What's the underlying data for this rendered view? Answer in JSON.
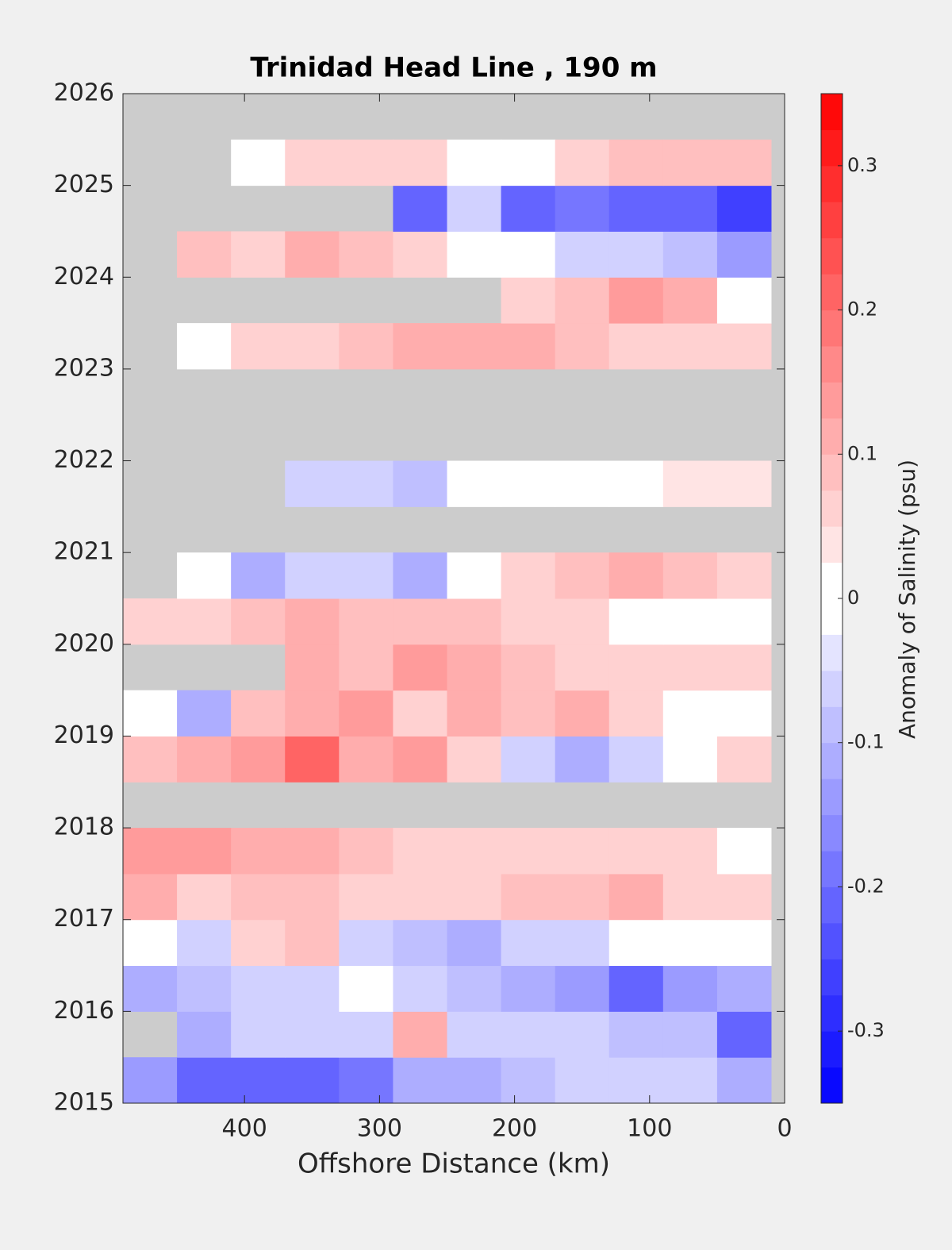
{
  "chart_data": {
    "type": "heatmap",
    "title": "Trinidad Head Line , 190 m",
    "x_label": "Offshore Distance (km)",
    "colorbar_label": "Anomaly of Salinity (psu)",
    "x": [
      470,
      430,
      390,
      350,
      310,
      270,
      230,
      190,
      150,
      110,
      70,
      30
    ],
    "y": [
      2015.25,
      2015.75,
      2016.25,
      2016.75,
      2017.25,
      2017.75,
      2018.25,
      2018.75,
      2019.25,
      2019.75,
      2020.25,
      2020.75,
      2021.25,
      2021.75,
      2022.25,
      2022.75,
      2023.25,
      2023.75,
      2024.25,
      2024.75,
      2025.25,
      2025.75
    ],
    "z": [
      [
        -0.15,
        -0.22,
        -0.22,
        -0.2,
        -0.18,
        -0.12,
        -0.1,
        -0.08,
        -0.05,
        -0.05,
        -0.05,
        -0.1
      ],
      [
        null,
        -0.1,
        -0.05,
        -0.05,
        -0.05,
        0.1,
        -0.05,
        -0.05,
        -0.05,
        -0.08,
        -0.08,
        -0.2
      ],
      [
        -0.1,
        -0.08,
        -0.05,
        -0.05,
        0,
        -0.05,
        -0.08,
        -0.1,
        -0.15,
        -0.2,
        -0.15,
        -0.1
      ],
      [
        0.02,
        -0.05,
        0.05,
        0.08,
        -0.05,
        -0.08,
        -0.1,
        -0.05,
        -0.05,
        0,
        0.02,
        0.02
      ],
      [
        0.1,
        0.05,
        0.08,
        0.08,
        0.05,
        0.05,
        0.05,
        0.08,
        0.08,
        0.1,
        0.05,
        0.05
      ],
      [
        0.15,
        0.15,
        0.1,
        0.1,
        0.08,
        0.05,
        0.05,
        0.05,
        0.05,
        0.05,
        0.05,
        0.02
      ],
      [
        null,
        null,
        null,
        null,
        null,
        null,
        null,
        null,
        null,
        null,
        null,
        null
      ],
      [
        0.08,
        0.1,
        0.15,
        0.2,
        0.1,
        0.15,
        0.05,
        -0.05,
        -0.1,
        -0.05,
        0.02,
        0.05
      ],
      [
        0.02,
        -0.1,
        0.08,
        0.1,
        0.15,
        0.05,
        0.1,
        0.08,
        0.1,
        0.05,
        0.02,
        0
      ],
      [
        null,
        null,
        null,
        0.1,
        0.08,
        0.15,
        0.1,
        0.08,
        0.05,
        0.05,
        0.05,
        0.05
      ],
      [
        0.05,
        0.05,
        0.08,
        0.1,
        0.08,
        0.08,
        0.08,
        0.05,
        0.05,
        0.02,
        0.02,
        0.02
      ],
      [
        null,
        0.02,
        -0.1,
        -0.05,
        -0.05,
        -0.1,
        0.02,
        0.05,
        0.08,
        0.1,
        0.08,
        0.05
      ],
      [
        null,
        null,
        null,
        null,
        null,
        null,
        null,
        null,
        null,
        null,
        null,
        null
      ],
      [
        null,
        null,
        null,
        -0.05,
        -0.05,
        -0.08,
        -0.02,
        0,
        0.02,
        0,
        0.03,
        0.03
      ],
      [
        null,
        null,
        null,
        null,
        null,
        null,
        null,
        null,
        null,
        null,
        null,
        null
      ],
      [
        null,
        null,
        null,
        null,
        null,
        null,
        null,
        null,
        null,
        null,
        null,
        null
      ],
      [
        null,
        0.02,
        0.05,
        0.05,
        0.08,
        0.1,
        0.1,
        0.1,
        0.08,
        0.05,
        0.05,
        0.05
      ],
      [
        null,
        null,
        null,
        null,
        null,
        null,
        null,
        0.05,
        0.08,
        0.15,
        0.1,
        0.02
      ],
      [
        null,
        0.08,
        0.05,
        0.1,
        0.08,
        0.05,
        0.02,
        0,
        -0.05,
        -0.05,
        -0.08,
        -0.15
      ],
      [
        null,
        null,
        null,
        null,
        null,
        -0.2,
        -0.05,
        -0.2,
        -0.18,
        -0.2,
        -0.2,
        -0.25
      ],
      [
        null,
        null,
        0.02,
        0.05,
        0.05,
        0.05,
        0,
        -0.02,
        0.05,
        0.08,
        0.08,
        0.08
      ],
      [
        null,
        null,
        null,
        null,
        null,
        null,
        null,
        null,
        null,
        null,
        null,
        null
      ]
    ],
    "xlim": [
      490,
      0
    ],
    "xticks": [
      400,
      300,
      200,
      100,
      0
    ],
    "ylim": [
      2015,
      2026
    ],
    "yticks": [
      2015,
      2016,
      2017,
      2018,
      2019,
      2020,
      2021,
      2022,
      2023,
      2024,
      2025,
      2026
    ],
    "clim": [
      -0.35,
      0.35
    ],
    "cticks": [
      -0.3,
      -0.2,
      -0.1,
      0,
      0.1,
      0.2,
      0.3
    ],
    "contour_step": 0.025,
    "colormap": [
      "#0000ff",
      "#ffffff",
      "#ff0000"
    ],
    "nan_color": "#cccccc"
  }
}
